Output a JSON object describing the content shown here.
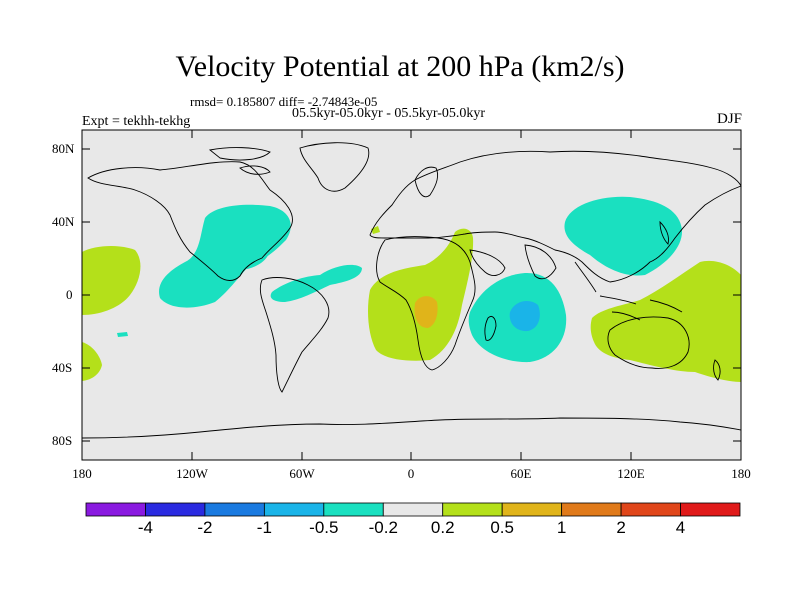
{
  "title": "Velocity Potential at 200 hPa (km2/s)",
  "stats": "rmsd= 0.185807 diff= -2.74843e-05",
  "period": "05.5kyr-05.0kyr - 05.5kyr-05.0kyr",
  "expt": "Expt = tekhh-tekhg",
  "season": "DJF",
  "lat_labels": [
    "80N",
    "40N",
    "0",
    "40S",
    "80S"
  ],
  "lon_labels": [
    "180",
    "120W",
    "60W",
    "0",
    "60E",
    "120E",
    "180"
  ],
  "colorbar": {
    "labels": [
      "-4",
      "-2",
      "-1",
      "-0.5",
      "-0.2",
      "0.2",
      "0.5",
      "1",
      "2",
      "4"
    ],
    "colors": [
      "#8a1ae0",
      "#2a2ae0",
      "#1a7ae0",
      "#1ab4e8",
      "#1ae0c0",
      "#e8e8e8",
      "#b4e01a",
      "#e0b41a",
      "#e07a1a",
      "#e0461a",
      "#e01a1a"
    ]
  },
  "colors": {
    "background": "#e8e8e8",
    "neg_02_05": "#1ae0c0",
    "neg_05_1": "#1ab4e8",
    "pos_02_05": "#b4e01a",
    "pos_05_1": "#e0b41a"
  }
}
